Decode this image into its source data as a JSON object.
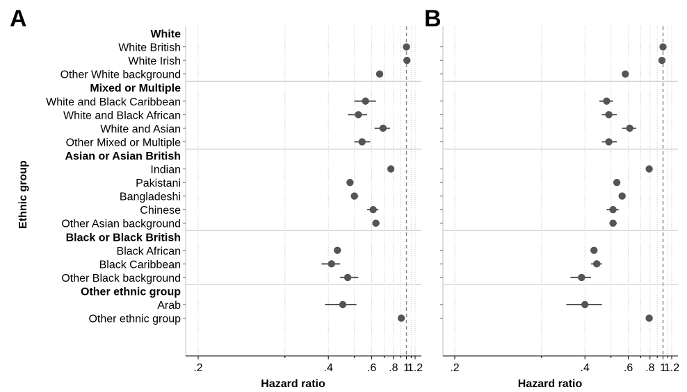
{
  "chart_data": {
    "type": "forest",
    "scale": "log",
    "xlim": [
      0.2,
      1.3
    ],
    "ticks": [
      0.2,
      0.4,
      0.6,
      0.8,
      1,
      1.2
    ],
    "tick_labels": [
      ".2",
      ".4",
      ".6",
      ".8",
      "1",
      "1.2"
    ],
    "minor_ticks": [
      0.3,
      0.5,
      0.7,
      0.9,
      1.1
    ],
    "reference_line": 1,
    "xlabel": "Hazard ratio",
    "ylabel": "Ethnic group",
    "marker_color": "#555555",
    "rows": [
      {
        "label": "White",
        "header": true
      },
      {
        "label": "White British",
        "header": false
      },
      {
        "label": "White Irish",
        "header": false
      },
      {
        "label": "Other White background",
        "header": false
      },
      {
        "label": "Mixed or Multiple",
        "header": true
      },
      {
        "label": "White and Black Caribbean",
        "header": false
      },
      {
        "label": "White and Black African",
        "header": false
      },
      {
        "label": "White and Asian",
        "header": false
      },
      {
        "label": "Other Mixed or Multiple",
        "header": false
      },
      {
        "label": "Asian or Asian British",
        "header": true
      },
      {
        "label": "Indian",
        "header": false
      },
      {
        "label": "Pakistani",
        "header": false
      },
      {
        "label": "Bangladeshi",
        "header": false
      },
      {
        "label": "Chinese",
        "header": false
      },
      {
        "label": "Other Asian background",
        "header": false
      },
      {
        "label": "Black or Black British",
        "header": true
      },
      {
        "label": "Black African",
        "header": false
      },
      {
        "label": "Black Caribbean",
        "header": false
      },
      {
        "label": "Other Black background",
        "header": false
      },
      {
        "label": "Other ethnic group",
        "header": true
      },
      {
        "label": "Arab",
        "header": false
      },
      {
        "label": "Other ethnic group",
        "header": false
      }
    ],
    "panels": [
      {
        "label": "A",
        "points": [
          {
            "row": 1,
            "hr": 1.0,
            "lo": 1.0,
            "hi": 1.0
          },
          {
            "row": 2,
            "hr": 1.01,
            "lo": 0.98,
            "hi": 1.04
          },
          {
            "row": 3,
            "hr": 0.66,
            "lo": 0.65,
            "hi": 0.67
          },
          {
            "row": 5,
            "hr": 0.56,
            "lo": 0.5,
            "hi": 0.63
          },
          {
            "row": 6,
            "hr": 0.52,
            "lo": 0.47,
            "hi": 0.57
          },
          {
            "row": 7,
            "hr": 0.69,
            "lo": 0.62,
            "hi": 0.76
          },
          {
            "row": 8,
            "hr": 0.54,
            "lo": 0.5,
            "hi": 0.59
          },
          {
            "row": 10,
            "hr": 0.77,
            "lo": 0.75,
            "hi": 0.79
          },
          {
            "row": 11,
            "hr": 0.48,
            "lo": 0.47,
            "hi": 0.49
          },
          {
            "row": 12,
            "hr": 0.5,
            "lo": 0.49,
            "hi": 0.52
          },
          {
            "row": 13,
            "hr": 0.61,
            "lo": 0.57,
            "hi": 0.65
          },
          {
            "row": 14,
            "hr": 0.63,
            "lo": 0.61,
            "hi": 0.66
          },
          {
            "row": 16,
            "hr": 0.43,
            "lo": 0.42,
            "hi": 0.44
          },
          {
            "row": 17,
            "hr": 0.41,
            "lo": 0.38,
            "hi": 0.44
          },
          {
            "row": 18,
            "hr": 0.47,
            "lo": 0.44,
            "hi": 0.52
          },
          {
            "row": 20,
            "hr": 0.45,
            "lo": 0.39,
            "hi": 0.51
          },
          {
            "row": 21,
            "hr": 0.91,
            "lo": 0.9,
            "hi": 0.92
          }
        ]
      },
      {
        "label": "B",
        "points": [
          {
            "row": 1,
            "hr": 1.0,
            "lo": 1.0,
            "hi": 1.0
          },
          {
            "row": 2,
            "hr": 0.98,
            "lo": 0.94,
            "hi": 1.02
          },
          {
            "row": 3,
            "hr": 0.58,
            "lo": 0.57,
            "hi": 0.59
          },
          {
            "row": 5,
            "hr": 0.48,
            "lo": 0.45,
            "hi": 0.51
          },
          {
            "row": 6,
            "hr": 0.49,
            "lo": 0.46,
            "hi": 0.53
          },
          {
            "row": 7,
            "hr": 0.61,
            "lo": 0.56,
            "hi": 0.66
          },
          {
            "row": 8,
            "hr": 0.49,
            "lo": 0.46,
            "hi": 0.53
          },
          {
            "row": 10,
            "hr": 0.79,
            "lo": 0.78,
            "hi": 0.8
          },
          {
            "row": 11,
            "hr": 0.53,
            "lo": 0.52,
            "hi": 0.54
          },
          {
            "row": 12,
            "hr": 0.56,
            "lo": 0.54,
            "hi": 0.58
          },
          {
            "row": 13,
            "hr": 0.51,
            "lo": 0.48,
            "hi": 0.54
          },
          {
            "row": 14,
            "hr": 0.51,
            "lo": 0.5,
            "hi": 0.53
          },
          {
            "row": 16,
            "hr": 0.43,
            "lo": 0.42,
            "hi": 0.44
          },
          {
            "row": 17,
            "hr": 0.44,
            "lo": 0.42,
            "hi": 0.46
          },
          {
            "row": 18,
            "hr": 0.39,
            "lo": 0.36,
            "hi": 0.42
          },
          {
            "row": 20,
            "hr": 0.4,
            "lo": 0.35,
            "hi": 0.46
          },
          {
            "row": 21,
            "hr": 0.79,
            "lo": 0.78,
            "hi": 0.8
          }
        ]
      }
    ]
  }
}
